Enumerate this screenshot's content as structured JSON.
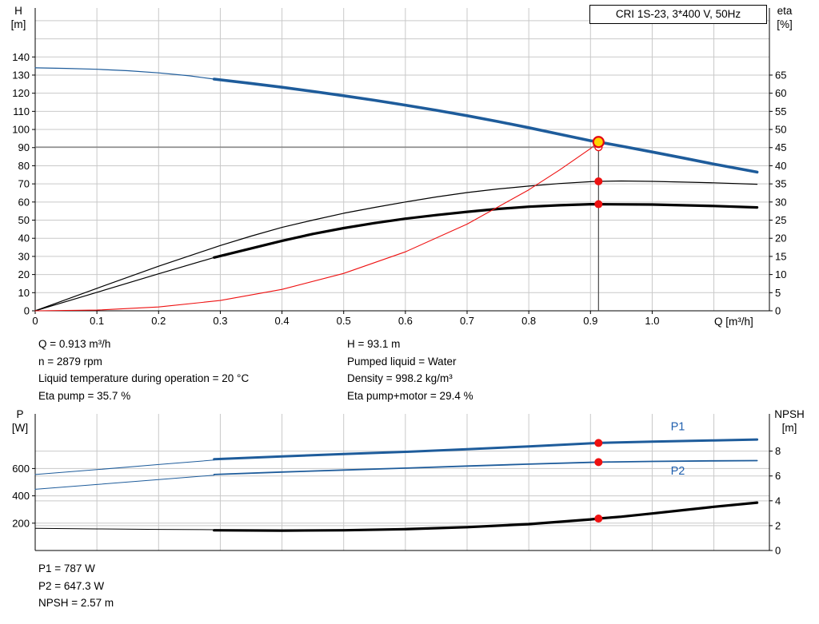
{
  "title_box": {
    "label": "CRI 1S-23, 3*400 V, 50Hz"
  },
  "axes_titles": {
    "h": "H",
    "m": "[m]",
    "eta": "eta",
    "pct": "[%]",
    "q": "Q [m³/h]",
    "p": "P",
    "w": "[W]",
    "npsh": "NPSH",
    "npsh_m": "[m]"
  },
  "info_top": {
    "left": [
      "Q = 0.913 m³/h",
      "n = 2879 rpm",
      "Liquid temperature during operation = 20 °C",
      "Eta pump = 35.7 %"
    ],
    "right": [
      "H = 93.1 m",
      "Pumped liquid = Water",
      "Density = 998.2 kg/m³",
      "Eta pump+motor = 29.4 %"
    ]
  },
  "info_bottom": [
    "P1 = 787 W",
    "P2 = 647.3 W",
    "NPSH = 2.57 m"
  ],
  "colors": {
    "blue": "#1e5c9b",
    "black": "#000000",
    "red": "#ee1111",
    "grid": "#c9c9c9",
    "axis": "#000000",
    "duty_yellow": "#ffd400",
    "duty_ring": "#e30613",
    "gray_line": "#6e6e6e",
    "vline": "#3a3a3a",
    "label_blue": "#1f5fae"
  },
  "chart_data": [
    {
      "type": "line",
      "title": "CRI 1S-23, 3*400 V, 50Hz",
      "x_axis": {
        "min": 0,
        "max": 1.19,
        "ticks": [
          {
            "v": 0,
            "l": "0"
          },
          {
            "v": 0.1,
            "l": "0.1"
          },
          {
            "v": 0.2,
            "l": "0.2"
          },
          {
            "v": 0.3,
            "l": "0.3"
          },
          {
            "v": 0.4,
            "l": "0.4"
          },
          {
            "v": 0.5,
            "l": "0.5"
          },
          {
            "v": 0.6,
            "l": "0.6"
          },
          {
            "v": 0.7,
            "l": "0.7"
          },
          {
            "v": 0.8,
            "l": "0.8"
          },
          {
            "v": 0.9,
            "l": "0.9"
          },
          {
            "v": 1.0,
            "l": "1.0"
          }
        ],
        "label": "Q [m³/h]"
      },
      "grid_x": [
        0.1,
        0.2,
        0.3,
        0.4,
        0.5,
        0.6,
        0.7,
        0.8,
        0.9,
        1.0,
        1.1
      ],
      "y_left": {
        "min": 0,
        "max": 167,
        "label": "H [m]",
        "ticks": [
          {
            "v": 0,
            "l": "0"
          },
          {
            "v": 10,
            "l": "10"
          },
          {
            "v": 20,
            "l": "20"
          },
          {
            "v": 30,
            "l": "30"
          },
          {
            "v": 40,
            "l": "40"
          },
          {
            "v": 50,
            "l": "50"
          },
          {
            "v": 60,
            "l": "60"
          },
          {
            "v": 70,
            "l": "70"
          },
          {
            "v": 80,
            "l": "80"
          },
          {
            "v": 90,
            "l": "90"
          },
          {
            "v": 100,
            "l": "100"
          },
          {
            "v": 110,
            "l": "110"
          },
          {
            "v": 120,
            "l": "120"
          },
          {
            "v": 130,
            "l": "130"
          },
          {
            "v": 140,
            "l": "140"
          }
        ],
        "grid": [
          10,
          20,
          30,
          40,
          50,
          60,
          70,
          80,
          90,
          100,
          110,
          120,
          130,
          140,
          150,
          160
        ]
      },
      "y_right": {
        "min": 0,
        "max": 83.5,
        "label": "eta [%]",
        "ticks": [
          {
            "v": 0,
            "l": "0"
          },
          {
            "v": 5,
            "l": "5"
          },
          {
            "v": 10,
            "l": "10"
          },
          {
            "v": 15,
            "l": "15"
          },
          {
            "v": 20,
            "l": "20"
          },
          {
            "v": 25,
            "l": "25"
          },
          {
            "v": 30,
            "l": "30"
          },
          {
            "v": 35,
            "l": "35"
          },
          {
            "v": 40,
            "l": "40"
          },
          {
            "v": 45,
            "l": "45"
          },
          {
            "v": 50,
            "l": "50"
          },
          {
            "v": 55,
            "l": "55"
          },
          {
            "v": 60,
            "l": "60"
          },
          {
            "v": 65,
            "l": "65"
          }
        ],
        "grid": []
      },
      "series": [
        {
          "name": "head-curve-thin",
          "axis": "left",
          "color": "#1e5c9b",
          "width": 1.2,
          "points": [
            [
              0,
              134
            ],
            [
              0.05,
              133.7
            ],
            [
              0.1,
              133.2
            ],
            [
              0.15,
              132.4
            ],
            [
              0.2,
              131.2
            ],
            [
              0.25,
              129.6
            ],
            [
              0.29,
              127.8
            ]
          ]
        },
        {
          "name": "head-curve",
          "axis": "left",
          "color": "#1e5c9b",
          "width": 3.6,
          "points": [
            [
              0.29,
              127.8
            ],
            [
              0.35,
              125.4
            ],
            [
              0.4,
              123.3
            ],
            [
              0.45,
              121.0
            ],
            [
              0.5,
              118.6
            ],
            [
              0.55,
              116.1
            ],
            [
              0.6,
              113.4
            ],
            [
              0.65,
              110.6
            ],
            [
              0.7,
              107.6
            ],
            [
              0.75,
              104.4
            ],
            [
              0.8,
              101.0
            ],
            [
              0.85,
              97.4
            ],
            [
              0.9,
              93.8
            ],
            [
              0.913,
              93.1
            ],
            [
              0.95,
              90.8
            ],
            [
              1.0,
              87.6
            ],
            [
              1.05,
              84.3
            ],
            [
              1.1,
              80.9
            ],
            [
              1.17,
              76.5
            ]
          ]
        },
        {
          "name": "eta-pump-curve",
          "axis": "right",
          "color": "#000000",
          "width": 1.2,
          "points": [
            [
              0,
              0
            ],
            [
              0.1,
              6.2
            ],
            [
              0.2,
              12.3
            ],
            [
              0.3,
              18.0
            ],
            [
              0.35,
              20.6
            ],
            [
              0.4,
              23.0
            ],
            [
              0.45,
              25.0
            ],
            [
              0.5,
              26.9
            ],
            [
              0.55,
              28.5
            ],
            [
              0.6,
              30.0
            ],
            [
              0.65,
              31.4
            ],
            [
              0.7,
              32.6
            ],
            [
              0.75,
              33.6
            ],
            [
              0.8,
              34.4
            ],
            [
              0.85,
              35.1
            ],
            [
              0.9,
              35.6
            ],
            [
              0.913,
              35.7
            ],
            [
              0.95,
              35.8
            ],
            [
              1.0,
              35.7
            ],
            [
              1.05,
              35.5
            ],
            [
              1.1,
              35.3
            ],
            [
              1.17,
              34.9
            ]
          ]
        },
        {
          "name": "eta-pump-motor-curve-thin",
          "axis": "right",
          "color": "#000000",
          "width": 1.2,
          "points": [
            [
              0,
              0
            ],
            [
              0.1,
              5.1
            ],
            [
              0.2,
              10.2
            ],
            [
              0.29,
              14.7
            ]
          ]
        },
        {
          "name": "eta-pump-motor-curve",
          "axis": "right",
          "color": "#000000",
          "width": 3.2,
          "points": [
            [
              0.29,
              14.7
            ],
            [
              0.35,
              17.2
            ],
            [
              0.4,
              19.3
            ],
            [
              0.45,
              21.2
            ],
            [
              0.5,
              22.8
            ],
            [
              0.55,
              24.2
            ],
            [
              0.6,
              25.4
            ],
            [
              0.65,
              26.4
            ],
            [
              0.7,
              27.3
            ],
            [
              0.75,
              28.1
            ],
            [
              0.8,
              28.7
            ],
            [
              0.85,
              29.1
            ],
            [
              0.9,
              29.4
            ],
            [
              0.913,
              29.4
            ],
            [
              1.0,
              29.3
            ],
            [
              1.1,
              28.9
            ],
            [
              1.17,
              28.5
            ]
          ]
        },
        {
          "name": "system-curve",
          "axis": "left",
          "color": "#ee1111",
          "width": 1.1,
          "points": [
            [
              0,
              0
            ],
            [
              0.1,
              0.4
            ],
            [
              0.2,
              2.1
            ],
            [
              0.3,
              5.7
            ],
            [
              0.4,
              11.8
            ],
            [
              0.5,
              20.6
            ],
            [
              0.6,
              32.5
            ],
            [
              0.7,
              47.8
            ],
            [
              0.8,
              66.7
            ],
            [
              0.85,
              77.7
            ],
            [
              0.9,
              89.5
            ],
            [
              0.913,
              93.1
            ]
          ]
        }
      ],
      "lines": [
        {
          "orient": "h",
          "y": 90.3,
          "x1": 0,
          "x2": 0.913,
          "axis": "left",
          "color": "#6e6e6e",
          "width": 1.2,
          "name": "duty-horizontal-line"
        },
        {
          "orient": "v",
          "x": 0.913,
          "y1": 0,
          "y2": 93.1,
          "axis": "left",
          "color": "#3a3a3a",
          "width": 1.1,
          "name": "duty-vertical-line"
        }
      ],
      "markers": [
        {
          "x": 0.913,
          "y": 90.3,
          "axis": "left",
          "r": 4.5,
          "fill": "#ffffff",
          "stroke": "#ee1111",
          "stroke_width": 1.4,
          "name": "requested-duty-marker",
          "interactable": false
        },
        {
          "x": 0.913,
          "y": 93.1,
          "axis": "left",
          "r": 6.5,
          "fill": "#ffd400",
          "stroke": "#e30613",
          "stroke_width": 2.2,
          "name": "duty-point-marker",
          "interactable": true
        },
        {
          "x": 0.913,
          "y": 35.7,
          "axis": "right",
          "r": 5,
          "fill": "#ee1111",
          "stroke": "none",
          "stroke_width": 0,
          "name": "eta-pump-duty-dot",
          "interactable": false
        },
        {
          "x": 0.913,
          "y": 29.4,
          "axis": "right",
          "r": 5,
          "fill": "#ee1111",
          "stroke": "none",
          "stroke_width": 0,
          "name": "eta-pump-motor-duty-dot",
          "interactable": false
        }
      ],
      "annotations": []
    },
    {
      "type": "line",
      "title": "Power and NPSH curves",
      "x_axis": {
        "min": 0,
        "max": 1.19,
        "ticks": [],
        "label": ""
      },
      "grid_x": [
        0.1,
        0.2,
        0.3,
        0.4,
        0.5,
        0.6,
        0.7,
        0.8,
        0.9,
        1.0,
        1.1
      ],
      "y_left": {
        "min": 0,
        "max": 1000,
        "label": "P [W]",
        "ticks": [
          {
            "v": 200,
            "l": "200"
          },
          {
            "v": 400,
            "l": "400"
          },
          {
            "v": 600,
            "l": "600"
          }
        ],
        "grid": [
          200,
          400,
          600
        ]
      },
      "y_right": {
        "min": 0,
        "max": 11,
        "label": "NPSH [m]",
        "ticks": [
          {
            "v": 0,
            "l": "0"
          },
          {
            "v": 2,
            "l": "2"
          },
          {
            "v": 4,
            "l": "4"
          },
          {
            "v": 6,
            "l": "6"
          },
          {
            "v": 8,
            "l": "8"
          }
        ],
        "grid": [
          2,
          4,
          6,
          8
        ]
      },
      "series": [
        {
          "name": "p1-curve-thin",
          "axis": "left",
          "color": "#1e5c9b",
          "width": 1,
          "points": [
            [
              0,
              556
            ],
            [
              0.1,
              592
            ],
            [
              0.2,
              629
            ],
            [
              0.29,
              662
            ]
          ]
        },
        {
          "name": "p1-curve",
          "axis": "left",
          "color": "#1e5c9b",
          "width": 3,
          "points": [
            [
              0.29,
              668
            ],
            [
              0.4,
              689
            ],
            [
              0.5,
              706
            ],
            [
              0.6,
              722
            ],
            [
              0.7,
              741
            ],
            [
              0.8,
              762
            ],
            [
              0.9,
              784
            ],
            [
              0.913,
              787
            ],
            [
              1.0,
              797
            ],
            [
              1.1,
              806
            ],
            [
              1.17,
              812
            ]
          ]
        },
        {
          "name": "p2-curve-thin",
          "axis": "left",
          "color": "#1e5c9b",
          "width": 1,
          "points": [
            [
              0,
              448
            ],
            [
              0.1,
              483
            ],
            [
              0.2,
              519
            ],
            [
              0.29,
              551
            ]
          ]
        },
        {
          "name": "p2-curve",
          "axis": "left",
          "color": "#1e5c9b",
          "width": 1.8,
          "points": [
            [
              0.29,
              556
            ],
            [
              0.4,
              574
            ],
            [
              0.5,
              589
            ],
            [
              0.6,
              603
            ],
            [
              0.7,
              618
            ],
            [
              0.8,
              632
            ],
            [
              0.9,
              645
            ],
            [
              0.913,
              647
            ],
            [
              1.0,
              652
            ],
            [
              1.1,
              656
            ],
            [
              1.17,
              658
            ]
          ]
        },
        {
          "name": "npsh-curve-thin",
          "axis": "right",
          "color": "#000000",
          "width": 1,
          "points": [
            [
              0,
              1.78
            ],
            [
              0.1,
              1.74
            ],
            [
              0.2,
              1.7
            ],
            [
              0.29,
              1.67
            ]
          ]
        },
        {
          "name": "npsh-curve",
          "axis": "right",
          "color": "#000000",
          "width": 3.2,
          "points": [
            [
              0.29,
              1.63
            ],
            [
              0.4,
              1.6
            ],
            [
              0.5,
              1.63
            ],
            [
              0.6,
              1.72
            ],
            [
              0.7,
              1.88
            ],
            [
              0.8,
              2.12
            ],
            [
              0.9,
              2.5
            ],
            [
              0.913,
              2.57
            ],
            [
              0.95,
              2.72
            ],
            [
              1.0,
              2.98
            ],
            [
              1.05,
              3.25
            ],
            [
              1.1,
              3.52
            ],
            [
              1.17,
              3.85
            ]
          ]
        }
      ],
      "lines": [],
      "markers": [
        {
          "x": 0.913,
          "y": 787,
          "axis": "left",
          "r": 5,
          "fill": "#ee1111",
          "stroke": "none",
          "stroke_width": 0,
          "name": "p1-duty-dot",
          "interactable": false
        },
        {
          "x": 0.913,
          "y": 647,
          "axis": "left",
          "r": 5,
          "fill": "#ee1111",
          "stroke": "none",
          "stroke_width": 0,
          "name": "p2-duty-dot",
          "interactable": false
        },
        {
          "x": 0.913,
          "y": 2.57,
          "axis": "right",
          "r": 5,
          "fill": "#ee1111",
          "stroke": "none",
          "stroke_width": 0,
          "name": "npsh-duty-dot",
          "interactable": false
        }
      ],
      "annotations": [
        {
          "text": "P1",
          "x": 1.03,
          "y": 880,
          "axis": "left",
          "color": "#1f5fae",
          "size": 14.5,
          "name": "p1-label"
        },
        {
          "text": "P2",
          "x": 1.03,
          "y": 555,
          "axis": "left",
          "color": "#1f5fae",
          "size": 14.5,
          "name": "p2-label"
        }
      ]
    }
  ]
}
